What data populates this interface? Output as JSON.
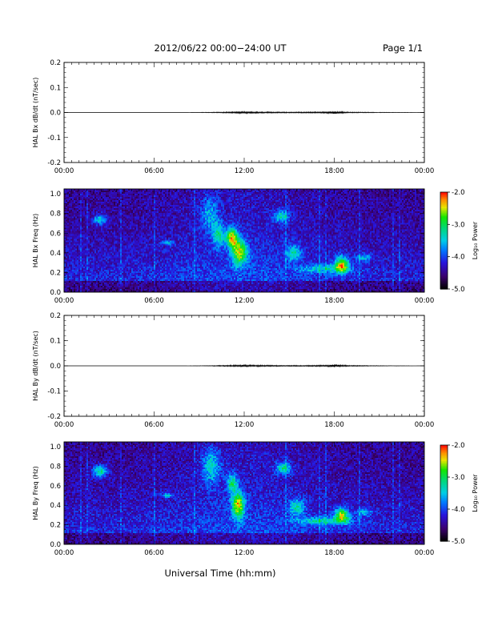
{
  "header": {
    "title": "2012/06/22  00:00−24:00 UT",
    "page": "Page 1/1"
  },
  "xlabel": "Universal Time (hh:mm)",
  "colorbar": {
    "label": "Log₁₀ Power",
    "ticks": [
      "-2.0",
      "-3.0",
      "-4.0",
      "-5.0"
    ],
    "range": [
      -5.0,
      -2.0
    ]
  },
  "chart_data": [
    {
      "type": "line",
      "ylabel": "HAL Bx dB/dt (nT/sec)",
      "xlabel": "",
      "x_ticks": [
        "00:00",
        "06:00",
        "12:00",
        "18:00",
        "00:00"
      ],
      "xlim": [
        0,
        24
      ],
      "y_ticks": [
        "0.2",
        "0.1",
        "0.0",
        "-0.1",
        "-0.2"
      ],
      "ylim": [
        -0.2,
        0.2
      ],
      "series": [
        {
          "x": [
            0,
            4,
            8,
            9.5,
            10.5,
            11.5,
            12.0,
            12.5,
            13.0,
            14.5,
            16.0,
            17.5,
            18.0,
            18.3,
            19,
            21,
            24
          ],
          "y": [
            0.0,
            0.0,
            0.0,
            0.001,
            0.002,
            0.003,
            0.004,
            0.003,
            0.003,
            0.002,
            0.002,
            0.003,
            0.006,
            0.004,
            0.002,
            0.001,
            0.0
          ]
        }
      ]
    },
    {
      "type": "heatmap",
      "ylabel": "HAL Bx Freq (Hz)",
      "xlabel": "",
      "x_ticks": [
        "00:00",
        "06:00",
        "12:00",
        "18:00",
        "00:00"
      ],
      "xlim": [
        0,
        24
      ],
      "y_ticks": [
        "1.0",
        "0.8",
        "0.6",
        "0.4",
        "0.2",
        "0.0"
      ],
      "ylim": [
        0,
        1.05
      ],
      "blobs": [
        {
          "t": 2.4,
          "f": 0.74,
          "dt": 0.45,
          "df": 0.05,
          "v": -3.3
        },
        {
          "t": 6.9,
          "f": 0.5,
          "dt": 0.35,
          "df": 0.02,
          "v": -3.3
        },
        {
          "t": 9.7,
          "f": 0.8,
          "dt": 0.6,
          "df": 0.18,
          "v": -3.6
        },
        {
          "t": 10.3,
          "f": 0.58,
          "dt": 0.4,
          "df": 0.12,
          "v": -3.3
        },
        {
          "t": 11.2,
          "f": 0.55,
          "dt": 0.4,
          "df": 0.1,
          "v": -2.5
        },
        {
          "t": 11.7,
          "f": 0.4,
          "dt": 0.5,
          "df": 0.12,
          "v": -2.6
        },
        {
          "t": 14.5,
          "f": 0.77,
          "dt": 0.5,
          "df": 0.06,
          "v": -3.3
        },
        {
          "t": 15.3,
          "f": 0.4,
          "dt": 0.45,
          "df": 0.08,
          "v": -3.3
        },
        {
          "t": 17.4,
          "f": 0.24,
          "dt": 1.7,
          "df": 0.04,
          "v": -3.5
        },
        {
          "t": 18.5,
          "f": 0.28,
          "dt": 0.45,
          "df": 0.08,
          "v": -2.6
        },
        {
          "t": 20.0,
          "f": 0.35,
          "dt": 0.5,
          "df": 0.04,
          "v": -3.6
        }
      ]
    },
    {
      "type": "line",
      "ylabel": "HAL By dB/dt (nT/sec)",
      "xlabel": "",
      "x_ticks": [
        "00:00",
        "06:00",
        "12:00",
        "18:00",
        "00:00"
      ],
      "xlim": [
        0,
        24
      ],
      "y_ticks": [
        "0.2",
        "0.1",
        "0.0",
        "-0.1",
        "-0.2"
      ],
      "ylim": [
        -0.2,
        0.2
      ],
      "series": [
        {
          "x": [
            0,
            4,
            8,
            9.5,
            10.5,
            11.5,
            12.0,
            12.5,
            13.0,
            14.5,
            16.0,
            17.5,
            18.0,
            18.3,
            19,
            21,
            24
          ],
          "y": [
            0.0,
            0.0,
            0.0,
            0.001,
            0.002,
            0.003,
            0.004,
            0.003,
            0.003,
            0.002,
            0.002,
            0.003,
            0.006,
            0.004,
            0.002,
            0.001,
            0.0
          ]
        }
      ]
    },
    {
      "type": "heatmap",
      "ylabel": "HAL By Freq (Hz)",
      "xlabel": "",
      "x_ticks": [
        "00:00",
        "06:00",
        "12:00",
        "18:00",
        "00:00"
      ],
      "xlim": [
        0,
        24
      ],
      "y_ticks": [
        "1.0",
        "0.8",
        "0.6",
        "0.4",
        "0.2",
        "0.0"
      ],
      "ylim": [
        0,
        1.05
      ],
      "blobs": [
        {
          "t": 2.4,
          "f": 0.75,
          "dt": 0.5,
          "df": 0.06,
          "v": -3.1
        },
        {
          "t": 6.9,
          "f": 0.5,
          "dt": 0.4,
          "df": 0.02,
          "v": -3.3
        },
        {
          "t": 9.8,
          "f": 0.8,
          "dt": 0.6,
          "df": 0.18,
          "v": -3.4
        },
        {
          "t": 11.6,
          "f": 0.4,
          "dt": 0.4,
          "df": 0.13,
          "v": -2.5
        },
        {
          "t": 11.2,
          "f": 0.62,
          "dt": 0.35,
          "df": 0.1,
          "v": -3.2
        },
        {
          "t": 14.6,
          "f": 0.78,
          "dt": 0.5,
          "df": 0.06,
          "v": -3.2
        },
        {
          "t": 15.5,
          "f": 0.38,
          "dt": 0.5,
          "df": 0.08,
          "v": -3.3
        },
        {
          "t": 17.3,
          "f": 0.24,
          "dt": 1.8,
          "df": 0.04,
          "v": -3.4
        },
        {
          "t": 18.5,
          "f": 0.3,
          "dt": 0.45,
          "df": 0.07,
          "v": -2.6
        },
        {
          "t": 20.0,
          "f": 0.33,
          "dt": 0.5,
          "df": 0.04,
          "v": -3.6
        }
      ]
    }
  ]
}
